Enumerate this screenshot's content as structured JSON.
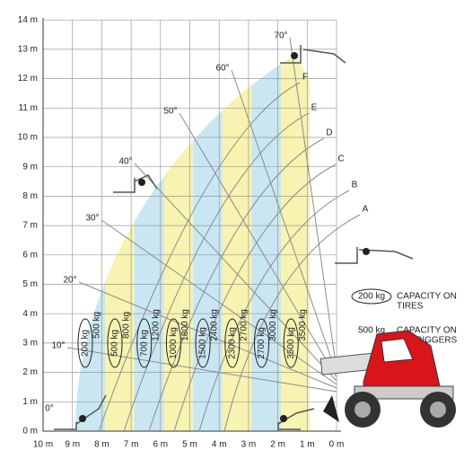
{
  "y_axis_labels": [
    "0 m",
    "1 m",
    "2 m",
    "3 m",
    "4 m",
    "5 m",
    "6 m",
    "7 m",
    "8 m",
    "9 m",
    "10 m",
    "11 m",
    "12 m",
    "13 m",
    "14 m"
  ],
  "x_axis_labels": [
    "10 m",
    "9 m",
    "8 m",
    "7 m",
    "6 m",
    "5 m",
    "4 m",
    "3 m",
    "2 m",
    "1 m",
    "0 m"
  ],
  "angles": [
    "0°",
    "10°",
    "20°",
    "30°",
    "40°",
    "50°",
    "60°",
    "70°"
  ],
  "boom_labels": [
    "A",
    "B",
    "C",
    "D",
    "E",
    "F"
  ],
  "zones": [
    {
      "tires": "200 kg",
      "outriggers": "500 kg"
    },
    {
      "tires": "500 kg",
      "outriggers": "800 kg"
    },
    {
      "tires": "700 kg",
      "outriggers": "1200 kg"
    },
    {
      "tires": "1000 kg",
      "outriggers": "1800 kg"
    },
    {
      "tires": "1500 kg",
      "outriggers": "2400 kg"
    },
    {
      "tires": "2300 kg",
      "outriggers": "2700 kg"
    },
    {
      "tires": "2700 kg",
      "outriggers": "3000 kg"
    },
    {
      "tires": "3500 kg",
      "outriggers": "3500 kg"
    }
  ],
  "legend": [
    {
      "sample": "200 kg",
      "lines": [
        "CAPACITY ON",
        "TIRES"
      ]
    },
    {
      "sample": "500 kg",
      "lines": [
        "CAPACITY ON",
        "OUTRIGGERS"
      ]
    }
  ]
}
